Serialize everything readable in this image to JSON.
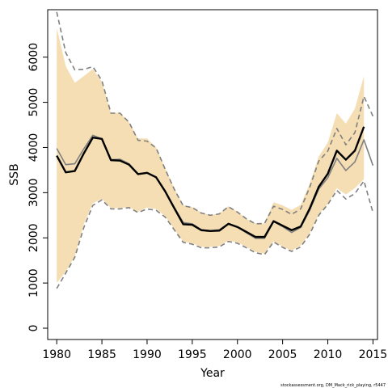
{
  "chart_data": {
    "type": "line",
    "xlabel": "Year",
    "ylabel": "SSB",
    "xlim": [
      1979,
      2015.5
    ],
    "ylim": [
      -250,
      7050
    ],
    "x_ticks": [
      1980,
      1985,
      1990,
      1995,
      2000,
      2005,
      2010,
      2015
    ],
    "y_ticks": [
      0,
      1000,
      2000,
      3000,
      4000,
      5000,
      6000
    ],
    "x_tick_labels": [
      "1980",
      "1985",
      "1990",
      "1995",
      "2000",
      "2005",
      "2010",
      "2015"
    ],
    "y_tick_labels": [
      "0",
      "1000",
      "2000",
      "3000",
      "4000",
      "5000",
      "6000"
    ],
    "grid": false,
    "footnote": "stockassessment.org, DM_Mack_rick_playing, r5447",
    "series": [
      {
        "role": "band",
        "color": "#f5deb3",
        "x": [
          1980,
          1981,
          1982,
          1983,
          1984,
          1985,
          1986,
          1987,
          1988,
          1989,
          1990,
          1991,
          1992,
          1993,
          1994,
          1995,
          1996,
          1997,
          1998,
          1999,
          2000,
          2001,
          2002,
          2003,
          2004,
          2005,
          2006,
          2007,
          2008,
          2009,
          2010,
          2011,
          2012,
          2013,
          2014
        ],
        "upper": [
          6650,
          5800,
          5430,
          5580,
          5740,
          5450,
          4760,
          4770,
          4560,
          4200,
          4200,
          4000,
          3550,
          3100,
          2720,
          2680,
          2560,
          2500,
          2540,
          2700,
          2580,
          2420,
          2320,
          2320,
          2790,
          2720,
          2620,
          2730,
          3200,
          3800,
          4110,
          4760,
          4530,
          4860,
          5580
        ],
        "lower": [
          1000,
          1250,
          1600,
          2300,
          2770,
          2860,
          2660,
          2660,
          2680,
          2580,
          2670,
          2640,
          2480,
          2200,
          1920,
          1880,
          1800,
          1800,
          1820,
          1940,
          1900,
          1800,
          1690,
          1650,
          1920,
          1810,
          1720,
          1830,
          2100,
          2520,
          2750,
          3100,
          2960,
          3100,
          3300
        ]
      },
      {
        "role": "ci-upper-dashed",
        "color": "#808080",
        "x": [
          1980,
          1981,
          1982,
          1983,
          1984,
          1985,
          1986,
          1987,
          1988,
          1989,
          1990,
          1991,
          1992,
          1993,
          1994,
          1995,
          1996,
          1997,
          1998,
          1999,
          2000,
          2001,
          2002,
          2003,
          2004,
          2005,
          2006,
          2007,
          2008,
          2009,
          2010,
          2011,
          2012,
          2013,
          2014,
          2015
        ],
        "values": [
          7000,
          6100,
          5720,
          5730,
          5790,
          5480,
          4760,
          4760,
          4560,
          4160,
          4140,
          3990,
          3520,
          3080,
          2710,
          2670,
          2550,
          2500,
          2530,
          2690,
          2570,
          2420,
          2310,
          2320,
          2700,
          2630,
          2520,
          2640,
          3120,
          3700,
          3920,
          4420,
          4060,
          4330,
          5130,
          4690
        ]
      },
      {
        "role": "ci-lower-dashed",
        "color": "#808080",
        "x": [
          1980,
          1981,
          1982,
          1983,
          1984,
          1985,
          1986,
          1987,
          1988,
          1989,
          1990,
          1991,
          1992,
          1993,
          1994,
          1995,
          1996,
          1997,
          1998,
          1999,
          2000,
          2001,
          2002,
          2003,
          2004,
          2005,
          2006,
          2007,
          2008,
          2009,
          2010,
          2011,
          2012,
          2013,
          2014,
          2015
        ],
        "values": [
          880,
          1220,
          1570,
          2230,
          2720,
          2840,
          2640,
          2640,
          2670,
          2560,
          2640,
          2610,
          2460,
          2180,
          1900,
          1860,
          1780,
          1780,
          1800,
          1920,
          1880,
          1780,
          1670,
          1630,
          1910,
          1790,
          1700,
          1800,
          2080,
          2500,
          2740,
          3050,
          2860,
          2980,
          3260,
          2560
        ]
      },
      {
        "role": "reference-gray",
        "color": "#808080",
        "x": [
          1980,
          1981,
          1982,
          1983,
          1984,
          1985,
          1986,
          1987,
          1988,
          1989,
          1990,
          1991,
          1992,
          1993,
          1994,
          1995,
          1996,
          1997,
          1998,
          1999,
          2000,
          2001,
          2002,
          2003,
          2004,
          2005,
          2006,
          2007,
          2008,
          2009,
          2010,
          2011,
          2012,
          2013,
          2014,
          2015
        ],
        "values": [
          3980,
          3620,
          3640,
          3970,
          4270,
          4190,
          3730,
          3740,
          3640,
          3420,
          3440,
          3340,
          3040,
          2680,
          2340,
          2310,
          2180,
          2160,
          2180,
          2320,
          2240,
          2110,
          1990,
          1990,
          2360,
          2250,
          2120,
          2230,
          2610,
          3080,
          3330,
          3760,
          3490,
          3680,
          4170,
          3600
        ]
      },
      {
        "role": "estimate",
        "color": "#000000",
        "x": [
          1980,
          1981,
          1982,
          1983,
          1984,
          1985,
          1986,
          1987,
          1988,
          1989,
          1990,
          1991,
          1992,
          1993,
          1994,
          1995,
          1996,
          1997,
          1998,
          1999,
          2000,
          2001,
          2002,
          2003,
          2004,
          2005,
          2006,
          2007,
          2008,
          2009,
          2010,
          2011,
          2012,
          2013,
          2014
        ],
        "values": [
          3820,
          3450,
          3480,
          3870,
          4220,
          4190,
          3720,
          3710,
          3620,
          3410,
          3440,
          3340,
          3030,
          2660,
          2300,
          2290,
          2170,
          2150,
          2160,
          2310,
          2240,
          2130,
          2020,
          2020,
          2370,
          2270,
          2170,
          2250,
          2650,
          3130,
          3420,
          3930,
          3730,
          3930,
          4460
        ]
      }
    ]
  }
}
